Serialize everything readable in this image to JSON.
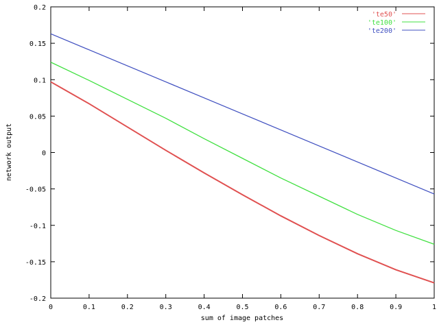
{
  "chart_data": {
    "type": "line",
    "title": "",
    "xlabel": "sum of image patches",
    "ylabel": "network output",
    "xlim": [
      0,
      1
    ],
    "ylim": [
      -0.2,
      0.2
    ],
    "xticks": [
      0,
      0.1,
      0.2,
      0.3,
      0.4,
      0.5,
      0.6,
      0.7,
      0.8,
      0.9,
      1
    ],
    "xtick_labels": [
      "0",
      "0.1",
      "0.2",
      "0.3",
      "0.4",
      "0.5",
      "0.6",
      "0.7",
      "0.8",
      "0.9",
      "1"
    ],
    "yticks": [
      -0.2,
      -0.15,
      -0.1,
      -0.05,
      0,
      0.05,
      0.1,
      0.15,
      0.2
    ],
    "ytick_labels": [
      "-0.2",
      "-0.15",
      "-0.1",
      "-0.05",
      "0",
      "0.05",
      "0.1",
      "0.15",
      "0.2"
    ],
    "grid": false,
    "legend_position": "top-right",
    "x": [
      0,
      0.1,
      0.2,
      0.3,
      0.4,
      0.5,
      0.6,
      0.7,
      0.8,
      0.9,
      1
    ],
    "series": [
      {
        "name": "'te50'",
        "color": "#e05050",
        "values": [
          0.097,
          0.067,
          0.035,
          0.003,
          -0.028,
          -0.058,
          -0.087,
          -0.114,
          -0.139,
          -0.161,
          -0.179
        ]
      },
      {
        "name": "'te100'",
        "color": "#40e040",
        "values": [
          0.124,
          0.099,
          0.073,
          0.047,
          0.019,
          -0.008,
          -0.035,
          -0.06,
          -0.085,
          -0.107,
          -0.126
        ]
      },
      {
        "name": "'te200'",
        "color": "#4050c0",
        "values": [
          0.163,
          0.141,
          0.119,
          0.097,
          0.075,
          0.053,
          0.031,
          0.009,
          -0.013,
          -0.035,
          -0.057
        ]
      }
    ]
  }
}
